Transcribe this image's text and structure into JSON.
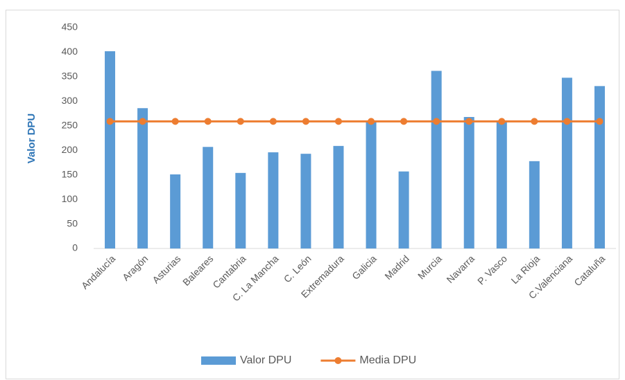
{
  "chart_data": {
    "type": "bar",
    "y_axis_label": "Valor  DPU",
    "categories": [
      "Andalucía",
      "Aragón",
      "Asturias",
      "Baleares",
      "Cantabria",
      "C. La Mancha",
      "C. León",
      "Extremadura",
      "Galicia",
      "Madrid",
      "Murcia",
      "Navarra",
      "P. Vasco",
      "La Rioja",
      "C.Valenciana",
      "Cataluña"
    ],
    "series": [
      {
        "name": "Valor DPU",
        "type": "bar",
        "color": "#5b9bd5",
        "values": [
          402,
          286,
          151,
          207,
          154,
          196,
          193,
          209,
          259,
          157,
          362,
          268,
          258,
          178,
          348,
          331
        ]
      },
      {
        "name": "Media DPU",
        "type": "line",
        "color": "#ed7d31",
        "values": [
          259,
          259,
          259,
          259,
          259,
          259,
          259,
          259,
          259,
          259,
          259,
          259,
          259,
          259,
          259,
          259
        ]
      }
    ],
    "ylim": [
      0,
      450
    ],
    "yticks": [
      0,
      50,
      100,
      150,
      200,
      250,
      300,
      350,
      400,
      450
    ],
    "grid": false,
    "legend": "bottom"
  }
}
